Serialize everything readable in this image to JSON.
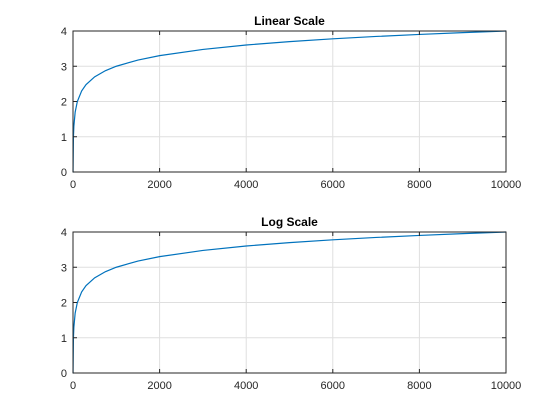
{
  "chart_data": [
    {
      "type": "line",
      "title": "Linear Scale",
      "xlabel": "",
      "ylabel": "",
      "xlim": [
        0,
        10000
      ],
      "ylim": [
        0,
        4
      ],
      "xticks": [
        0,
        2000,
        4000,
        6000,
        8000,
        10000
      ],
      "xtick_labels": [
        "0",
        "2000",
        "4000",
        "6000",
        "8000",
        "10000"
      ],
      "yticks": [
        0,
        1,
        2,
        3,
        4
      ],
      "ytick_labels": [
        "0",
        "1",
        "2",
        "3",
        "4"
      ],
      "grid": true,
      "line_color": "#0072BD",
      "series": [
        {
          "x": [
            1,
            10,
            20,
            50,
            100,
            200,
            300,
            500,
            750,
            1000,
            1500,
            2000,
            3000,
            4000,
            5000,
            6000,
            7000,
            8000,
            9000,
            10000
          ],
          "y": [
            0,
            1,
            1.301,
            1.699,
            2,
            2.301,
            2.477,
            2.699,
            2.875,
            3,
            3.176,
            3.301,
            3.477,
            3.602,
            3.699,
            3.778,
            3.845,
            3.903,
            3.954,
            4
          ]
        }
      ]
    },
    {
      "type": "line",
      "title": "Log Scale",
      "xlabel": "",
      "ylabel": "",
      "xlim": [
        0,
        10000
      ],
      "ylim": [
        0,
        4
      ],
      "xticks": [
        0,
        2000,
        4000,
        6000,
        8000,
        10000
      ],
      "xtick_labels": [
        "0",
        "2000",
        "4000",
        "6000",
        "8000",
        "10000"
      ],
      "yticks": [
        0,
        1,
        2,
        3,
        4
      ],
      "ytick_labels": [
        "0",
        "1",
        "2",
        "3",
        "4"
      ],
      "grid": true,
      "line_color": "#0072BD",
      "series": [
        {
          "x": [
            1,
            10,
            20,
            50,
            100,
            200,
            300,
            500,
            750,
            1000,
            1500,
            2000,
            3000,
            4000,
            5000,
            6000,
            7000,
            8000,
            9000,
            10000
          ],
          "y": [
            0,
            1,
            1.301,
            1.699,
            2,
            2.301,
            2.477,
            2.699,
            2.875,
            3,
            3.176,
            3.301,
            3.477,
            3.602,
            3.699,
            3.778,
            3.845,
            3.903,
            3.954,
            4
          ]
        }
      ]
    }
  ]
}
